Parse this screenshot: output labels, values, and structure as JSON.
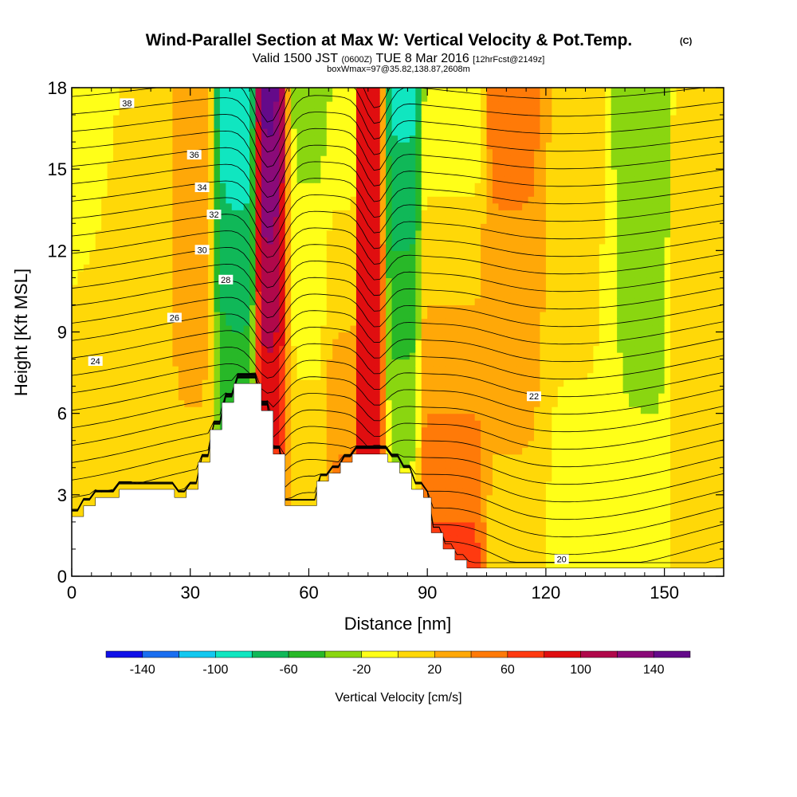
{
  "header": {
    "title": "Wind-Parallel Section at Max W: Vertical Velocity & Pot.Temp.",
    "copyright": "(C)",
    "valid_prefix": "Valid 1500 JST",
    "valid_utc": "(0600Z)",
    "valid_date": "TUE 8 Mar 2016",
    "forecast": "[12hrFcst@2149z]",
    "box_info": "boxWmax=97@35.82,138.87,2608m"
  },
  "chart_data": {
    "type": "heatmap",
    "title": "Wind-Parallel Section at Max W: Vertical Velocity & Pot.Temp.",
    "xlabel": "Distance [nm]",
    "ylabel": "Height [Kft MSL]",
    "xlim": [
      0,
      165
    ],
    "ylim": [
      0,
      18
    ],
    "x_ticks": [
      0,
      30,
      60,
      90,
      120,
      150
    ],
    "y_ticks": [
      0,
      3,
      6,
      9,
      12,
      15,
      18
    ],
    "colorbar": {
      "label": "Vertical Velocity [cm/s]",
      "tick_values": [
        -140,
        -100,
        -60,
        -20,
        20,
        60,
        100,
        140
      ],
      "tick_labels": [
        "-140",
        "-100",
        "-60",
        "-20",
        "20",
        "60",
        "100",
        "140"
      ],
      "bounds": [
        -160,
        -140,
        -120,
        -100,
        -80,
        -60,
        -40,
        -20,
        0,
        20,
        40,
        60,
        80,
        100,
        120,
        140,
        160
      ],
      "colors": [
        "#1010e8",
        "#1a6ef0",
        "#12c8f0",
        "#10e6c0",
        "#10b858",
        "#28b828",
        "#8ad610",
        "#ffff18",
        "#ffd808",
        "#ffa808",
        "#ff7a08",
        "#ff3a10",
        "#e00e10",
        "#b0084a",
        "#8a0a78",
        "#640a8a"
      ]
    },
    "velocity_bands": [
      {
        "x_center": 5,
        "x_width": 12,
        "w_surface": 20,
        "w_upper": -20
      },
      {
        "x_center": 14,
        "x_width": 16,
        "w_surface": 20,
        "w_upper": 10
      },
      {
        "x_center": 30,
        "x_width": 6,
        "w_surface": 10,
        "w_upper": 40
      },
      {
        "x_center": 41,
        "x_width": 5,
        "w_surface": -20,
        "w_upper": -100
      },
      {
        "x_center": 51,
        "x_width": 4,
        "w_surface": 60,
        "w_upper": 150
      },
      {
        "x_center": 59,
        "x_width": 6,
        "w_surface": 20,
        "w_upper": -30
      },
      {
        "x_center": 67,
        "x_width": 3,
        "w_surface": 60,
        "w_upper": -20
      },
      {
        "x_center": 77,
        "x_width": 3,
        "w_surface": 90,
        "w_upper": 90
      },
      {
        "x_center": 82,
        "x_width": 4,
        "w_surface": 0,
        "w_upper": -90
      },
      {
        "x_center": 97,
        "x_width": 6,
        "w_surface": 70,
        "w_upper": -20
      },
      {
        "x_center": 113,
        "x_width": 7,
        "w_surface": 10,
        "w_upper": 50
      },
      {
        "x_center": 129,
        "x_width": 10,
        "w_surface": -10,
        "w_upper": 15
      },
      {
        "x_center": 142,
        "x_width": 8,
        "w_surface": -10,
        "w_upper": -40
      },
      {
        "x_center": 160,
        "x_width": 7,
        "w_surface": 20,
        "w_upper": 15
      }
    ],
    "terrain": [
      [
        0,
        2.2
      ],
      [
        3,
        2.2
      ],
      [
        3,
        2.6
      ],
      [
        6,
        2.6
      ],
      [
        6,
        2.9
      ],
      [
        12,
        2.9
      ],
      [
        12,
        3.2
      ],
      [
        26,
        3.2
      ],
      [
        26,
        2.9
      ],
      [
        29,
        2.9
      ],
      [
        29,
        3.2
      ],
      [
        32,
        3.2
      ],
      [
        32,
        4.2
      ],
      [
        35,
        4.2
      ],
      [
        35,
        5.4
      ],
      [
        38,
        5.4
      ],
      [
        38,
        6.4
      ],
      [
        41,
        6.4
      ],
      [
        41,
        7.1
      ],
      [
        48,
        7.1
      ],
      [
        48,
        6.1
      ],
      [
        51,
        6.1
      ],
      [
        51,
        4.5
      ],
      [
        54,
        4.5
      ],
      [
        54,
        2.6
      ],
      [
        59,
        2.6
      ],
      [
        59,
        2.6
      ],
      [
        62,
        2.6
      ],
      [
        62,
        3.5
      ],
      [
        65,
        3.5
      ],
      [
        65,
        3.8
      ],
      [
        68,
        3.8
      ],
      [
        68,
        4.2
      ],
      [
        71,
        4.2
      ],
      [
        71,
        4.5
      ],
      [
        80,
        4.5
      ],
      [
        80,
        4.2
      ],
      [
        83,
        4.2
      ],
      [
        83,
        3.8
      ],
      [
        86,
        3.8
      ],
      [
        86,
        3.2
      ],
      [
        89,
        3.2
      ],
      [
        89,
        2.9
      ],
      [
        91,
        2.9
      ],
      [
        91,
        1.6
      ],
      [
        94,
        1.6
      ],
      [
        94,
        1.0
      ],
      [
        97,
        1.0
      ],
      [
        97,
        0.6
      ],
      [
        100,
        0.6
      ],
      [
        100,
        0.3
      ],
      [
        165,
        0.3
      ]
    ],
    "isentropes": [
      {
        "value": 20,
        "label_x": 124,
        "label_y": 0.6
      },
      {
        "value": 22,
        "label_x": 117,
        "label_y": 6.6
      },
      {
        "value": 24,
        "label_x": 6,
        "label_y": 7.9
      },
      {
        "value": 26,
        "label_x": 26,
        "label_y": 9.5
      },
      {
        "value": 28,
        "label_x": 39,
        "label_y": 10.9
      },
      {
        "value": 30,
        "label_x": 33,
        "label_y": 12.0
      },
      {
        "value": 32,
        "label_x": 36,
        "label_y": 13.3
      },
      {
        "value": 34,
        "label_x": 33,
        "label_y": 14.3
      },
      {
        "value": 36,
        "label_x": 31,
        "label_y": 15.5
      },
      {
        "value": 38,
        "label_x": 14,
        "label_y": 17.4
      }
    ]
  }
}
